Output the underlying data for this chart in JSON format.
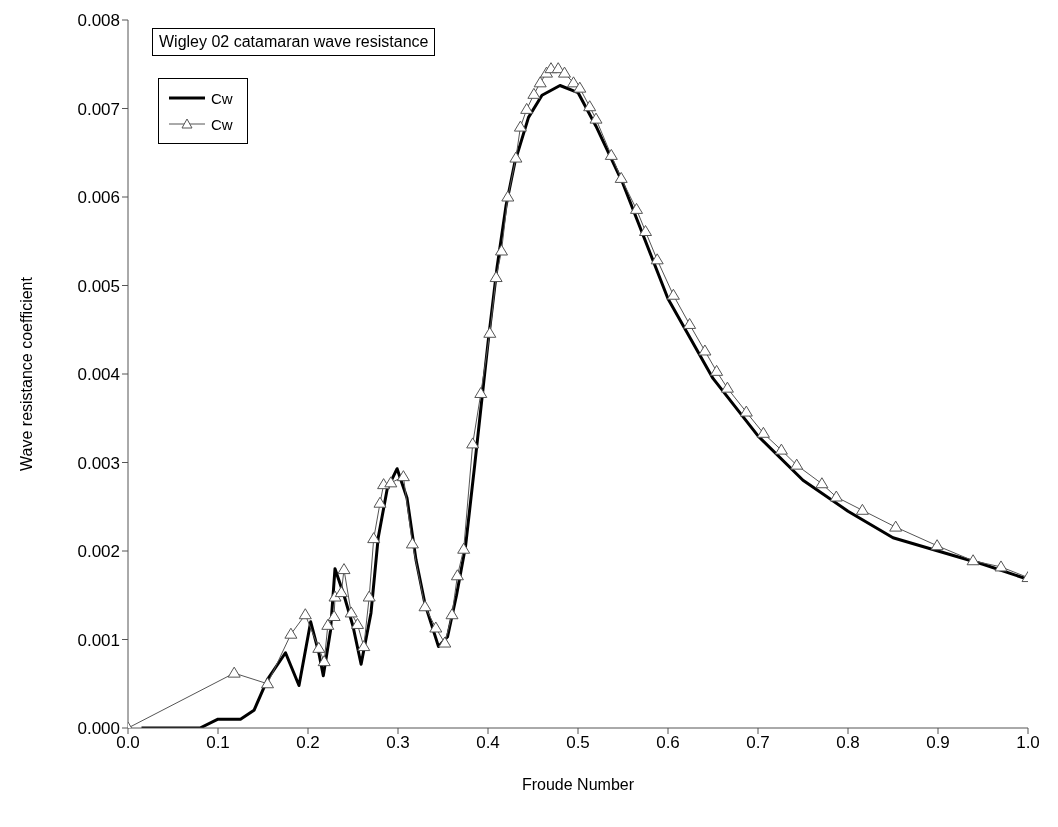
{
  "chart_data": {
    "type": "line",
    "title": "Wigley 02 catamaran wave resistance",
    "xlabel": "Froude Number",
    "ylabel": "Wave resistance coefficient",
    "xlim": [
      0,
      1
    ],
    "xticks": [
      {
        "value": 0,
        "label": "0.0"
      },
      {
        "value": 0.1,
        "label": "0.1"
      },
      {
        "value": 0.2,
        "label": "0.2"
      },
      {
        "value": 0.3,
        "label": "0.3"
      },
      {
        "value": 0.4,
        "label": "0.4"
      },
      {
        "value": 0.5,
        "label": "0.5"
      },
      {
        "value": 0.6,
        "label": "0.6"
      },
      {
        "value": 0.7,
        "label": "0.7"
      },
      {
        "value": 0.8,
        "label": "0.8"
      },
      {
        "value": 0.9,
        "label": "0.9"
      },
      {
        "value": 1,
        "label": "1.0"
      }
    ],
    "ylim": [
      0,
      0.008
    ],
    "yticks": [
      {
        "value": 0,
        "label": "0.000"
      },
      {
        "value": 0.001,
        "label": "0.001"
      },
      {
        "value": 0.002,
        "label": "0.002"
      },
      {
        "value": 0.003,
        "label": "0.003"
      },
      {
        "value": 0.004,
        "label": "0.004"
      },
      {
        "value": 0.005,
        "label": "0.005"
      },
      {
        "value": 0.006,
        "label": "0.006"
      },
      {
        "value": 0.007,
        "label": "0.007"
      },
      {
        "value": 0.008,
        "label": "0.008"
      }
    ],
    "grid": false,
    "legend": "top left",
    "line_style": "solid",
    "series": [
      {
        "name": "Cw",
        "color": "#000000",
        "marker": "none",
        "x": [
          0.015,
          0.05,
          0.08,
          0.1,
          0.11,
          0.125,
          0.14,
          0.155,
          0.175,
          0.19,
          0.203,
          0.212,
          0.217,
          0.225,
          0.23,
          0.24,
          0.25,
          0.259,
          0.27,
          0.278,
          0.288,
          0.299,
          0.31,
          0.32,
          0.33,
          0.345,
          0.355,
          0.365,
          0.375,
          0.385,
          0.4,
          0.41,
          0.42,
          0.43,
          0.445,
          0.46,
          0.48,
          0.5,
          0.52,
          0.55,
          0.6,
          0.65,
          0.7,
          0.75,
          0.8,
          0.85,
          0.9,
          0.95,
          1.0
        ],
        "values": [
          0,
          0,
          0,
          0.0001,
          0.0001,
          0.0001,
          0.0002,
          0.00055,
          0.00085,
          0.00048,
          0.0012,
          0.00085,
          0.00059,
          0.0011,
          0.0018,
          0.0015,
          0.00115,
          0.00072,
          0.0013,
          0.00215,
          0.0027,
          0.00293,
          0.0026,
          0.0019,
          0.0014,
          0.00092,
          0.00103,
          0.0015,
          0.00205,
          0.00295,
          0.00435,
          0.0052,
          0.0059,
          0.0064,
          0.0069,
          0.00715,
          0.00726,
          0.00718,
          0.0068,
          0.00615,
          0.00485,
          0.00395,
          0.0033,
          0.0028,
          0.00245,
          0.00215,
          0.002,
          0.00185,
          0.00168
        ]
      },
      {
        "name": "Cw",
        "color": "#555555",
        "marker": "triangle",
        "x": [
          0,
          0.118,
          0.155,
          0.181,
          0.197,
          0.212,
          0.218,
          0.222,
          0.229,
          0.23,
          0.237,
          0.24,
          0.248,
          0.255,
          0.262,
          0.268,
          0.273,
          0.28,
          0.284,
          0.292,
          0.306,
          0.316,
          0.33,
          0.342,
          0.352,
          0.36,
          0.366,
          0.373,
          0.383,
          0.392,
          0.402,
          0.409,
          0.415,
          0.422,
          0.431,
          0.436,
          0.443,
          0.451,
          0.458,
          0.465,
          0.47,
          0.478,
          0.485,
          0.495,
          0.502,
          0.513,
          0.52,
          0.537,
          0.548,
          0.565,
          0.575,
          0.588,
          0.606,
          0.624,
          0.641,
          0.654,
          0.666,
          0.687,
          0.706,
          0.726,
          0.743,
          0.771,
          0.787,
          0.816,
          0.853,
          0.899,
          0.939,
          0.97,
          1.0
        ],
        "values": [
          0,
          0.00062,
          0.0005,
          0.00106,
          0.00128,
          0.0009,
          0.00075,
          0.00116,
          0.00126,
          0.00148,
          0.00153,
          0.00179,
          0.0013,
          0.00117,
          0.00092,
          0.00148,
          0.00214,
          0.00254,
          0.00275,
          0.00277,
          0.00284,
          0.00208,
          0.00137,
          0.00113,
          0.00096,
          0.00128,
          0.00172,
          0.00202,
          0.00321,
          0.00378,
          0.00446,
          0.00509,
          0.00539,
          0.006,
          0.00644,
          0.00679,
          0.00699,
          0.00716,
          0.00729,
          0.0074,
          0.00745,
          0.00745,
          0.0074,
          0.00729,
          0.00723,
          0.00702,
          0.00688,
          0.00647,
          0.00621,
          0.00586,
          0.00561,
          0.00529,
          0.00489,
          0.00456,
          0.00426,
          0.00403,
          0.00384,
          0.00357,
          0.00333,
          0.00314,
          0.00297,
          0.00276,
          0.00261,
          0.00246,
          0.00227,
          0.00206,
          0.00189,
          0.00182,
          0.0017
        ]
      }
    ]
  }
}
